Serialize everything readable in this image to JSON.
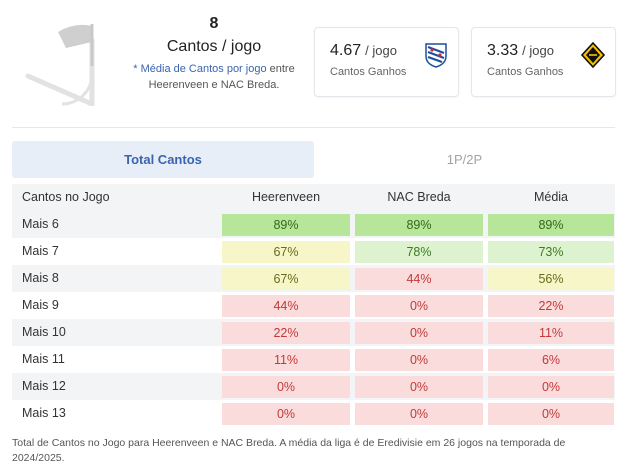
{
  "summary": {
    "avg_value": "8",
    "avg_unit": "Cantos / jogo",
    "note_prefix": "* ",
    "note_highlight": "Média de Cantos por jogo",
    "note_rest": " entre Heerenveen e NAC Breda."
  },
  "teams": [
    {
      "value": "4.67",
      "per": "/ jogo",
      "label": "Cantos Ganhos",
      "logo": "heerenveen-logo"
    },
    {
      "value": "3.33",
      "per": "/ jogo",
      "label": "Cantos Ganhos",
      "logo": "nac-breda-logo"
    }
  ],
  "tabs": [
    {
      "label": "Total Cantos",
      "active": true
    },
    {
      "label": "1P/2P",
      "active": false
    }
  ],
  "table": {
    "headers": [
      "Cantos no Jogo",
      "Heerenveen",
      "NAC Breda",
      "Média"
    ],
    "rows": [
      {
        "label": "Mais 6",
        "values": [
          "89%",
          "89%",
          "89%"
        ]
      },
      {
        "label": "Mais 7",
        "values": [
          "67%",
          "78%",
          "73%"
        ]
      },
      {
        "label": "Mais 8",
        "values": [
          "67%",
          "44%",
          "56%"
        ]
      },
      {
        "label": "Mais 9",
        "values": [
          "44%",
          "0%",
          "22%"
        ]
      },
      {
        "label": "Mais 10",
        "values": [
          "22%",
          "0%",
          "11%"
        ]
      },
      {
        "label": "Mais 11",
        "values": [
          "11%",
          "0%",
          "6%"
        ]
      },
      {
        "label": "Mais 12",
        "values": [
          "0%",
          "0%",
          "0%"
        ]
      },
      {
        "label": "Mais 13",
        "values": [
          "0%",
          "0%",
          "0%"
        ]
      }
    ]
  },
  "colors": {
    "high_bg": "#b7e59a",
    "high_fg": "#2e6b1a",
    "good_bg": "#ddf3cf",
    "good_fg": "#3e7a26",
    "mid_bg": "#f6f6c9",
    "mid_fg": "#6a6a1e",
    "low_bg": "#fbdcdc",
    "low_fg": "#c23a3a"
  },
  "footnote": "Total de Cantos no Jogo para Heerenveen e NAC Breda. A média da liga é de Eredivisie em 26 jogos na temporada de 2024/2025."
}
